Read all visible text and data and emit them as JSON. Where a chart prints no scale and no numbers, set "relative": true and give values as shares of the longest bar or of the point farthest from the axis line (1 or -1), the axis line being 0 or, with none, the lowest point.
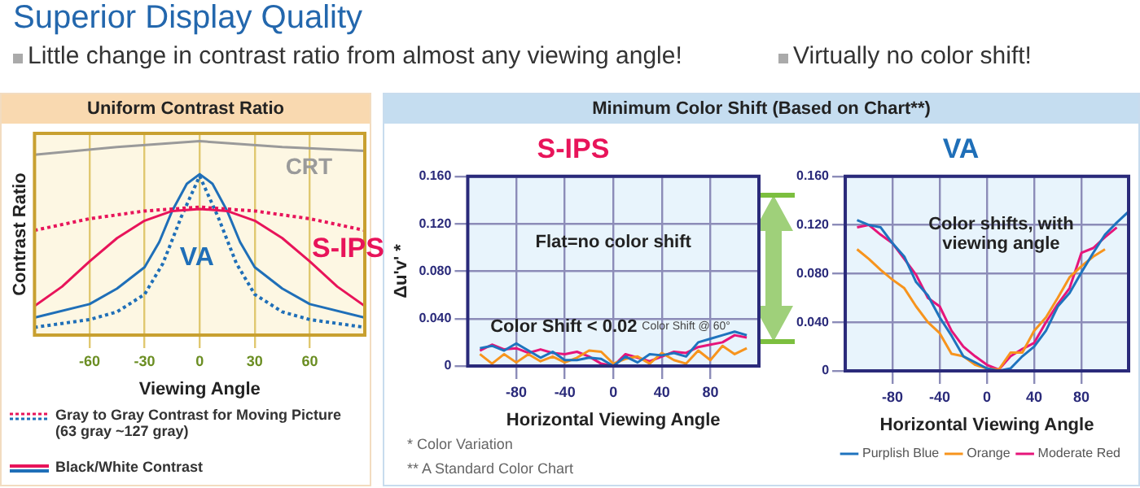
{
  "chart_data": [
    {
      "type": "line",
      "title": "Uniform Contrast Ratio",
      "xlabel": "Viewing Angle",
      "ylabel": "Contrast Ratio",
      "relative": true,
      "xlim": [
        -90,
        90
      ],
      "xticks": [
        -60,
        -30,
        0,
        30,
        60
      ],
      "grid": "x",
      "legend": false,
      "tick_labels": "x",
      "annotations": [
        "Superior Display Quality",
        "Little change in contrast ratio from almost any viewing angle!",
        "Gray to Gray Contrast for Moving Picture (63 gray ~127 gray)",
        "Black/White Contrast"
      ],
      "series": [
        {
          "name": "CRT",
          "color": "#9a9a9a",
          "x": [
            -90,
            -45,
            0,
            45,
            90
          ],
          "values": [
            0.93,
            0.97,
            1,
            0.97,
            0.95
          ]
        },
        {
          "name": "S-IPS",
          "color": "#e8145a",
          "x": [
            -90,
            -75,
            -60,
            -45,
            -30,
            -15,
            0,
            15,
            30,
            45,
            60,
            75,
            90
          ],
          "values": [
            0.15,
            0.25,
            0.38,
            0.5,
            0.59,
            0.64,
            0.65,
            0.64,
            0.59,
            0.5,
            0.38,
            0.25,
            0.15
          ]
        },
        {
          "color": "#e8145a",
          "line_style": "dotted",
          "x": [
            -90,
            -60,
            -30,
            0,
            30,
            60,
            90
          ],
          "values": [
            0.54,
            0.6,
            0.64,
            0.66,
            0.64,
            0.6,
            0.54
          ]
        },
        {
          "name": "VA",
          "color": "#1f6fb8",
          "x": [
            -90,
            -60,
            -45,
            -30,
            -22,
            -15,
            -7,
            0,
            7,
            15,
            22,
            30,
            45,
            60,
            90
          ],
          "values": [
            0.09,
            0.16,
            0.24,
            0.35,
            0.48,
            0.64,
            0.78,
            0.83,
            0.78,
            0.64,
            0.48,
            0.35,
            0.24,
            0.16,
            0.09
          ]
        },
        {
          "color": "#1f6fb8",
          "line_style": "dotted",
          "x": [
            -90,
            -60,
            -45,
            -30,
            -20,
            -10,
            0,
            10,
            20,
            30,
            45,
            60,
            90
          ],
          "values": [
            0.04,
            0.08,
            0.12,
            0.21,
            0.37,
            0.61,
            0.82,
            0.61,
            0.37,
            0.21,
            0.12,
            0.08,
            0.04
          ]
        }
      ]
    },
    {
      "type": "line",
      "title": "S-IPS",
      "xlabel": "Horizontal Viewing Angle",
      "ylabel": "Δu'v' *",
      "xlim": [
        -120,
        120
      ],
      "xticks": [
        -80,
        -40,
        0,
        40,
        80
      ],
      "ylim": [
        0,
        0.16
      ],
      "yticks": [
        0,
        {
          "value": 0.04,
          "label": "0.040"
        },
        {
          "value": 0.08,
          "label": "0.080"
        },
        {
          "value": 0.12,
          "label": "0.120"
        },
        {
          "value": 0.16,
          "label": "0.160"
        }
      ],
      "grid": true,
      "legend": false,
      "annotations": [
        "Virtually no color shift!",
        "Minimum Color Shift (Based on Chart**)",
        "Flat=no color shift",
        "Color Shift < 0.02",
        {
          "text": "Color Shift @ 60°",
          "x": 60,
          "y": 0.015
        },
        "* Color Variation",
        "** A Standard Color Chart"
      ],
      "x": [
        -110,
        -100,
        -90,
        -80,
        -70,
        -60,
        -50,
        -40,
        -30,
        -20,
        -10,
        0,
        10,
        20,
        30,
        40,
        50,
        60,
        70,
        80,
        90,
        100,
        110
      ],
      "series": [
        {
          "color": "#1e73be",
          "values": [
            0.015,
            0.017,
            0.013,
            0.019,
            0.013,
            0.007,
            0.012,
            0.005,
            0.005,
            0.007,
            0.006,
            0,
            0.008,
            0.003,
            0.01,
            0.009,
            0.011,
            0.008,
            0.02,
            0.023,
            0.026,
            0.029,
            0.026
          ]
        },
        {
          "color": "#f7941d",
          "values": [
            0.01,
            0.002,
            0.01,
            0.003,
            0.01,
            0.004,
            0.008,
            0.003,
            0.007,
            0.013,
            0.012,
            0.002,
            0.006,
            0.008,
            0.002,
            0.011,
            0.005,
            0.002,
            0.013,
            0.005,
            0.017,
            0.01,
            0.015
          ]
        },
        {
          "color": "#e6157a",
          "values": [
            0.013,
            0.018,
            0.014,
            0.015,
            0.011,
            0.014,
            0.011,
            0.01,
            0.012,
            0.008,
            0.002,
            0,
            0.01,
            0.007,
            0.004,
            0.008,
            0.012,
            0.011,
            0.016,
            0.018,
            0.02,
            0.026,
            0.024
          ]
        }
      ]
    },
    {
      "type": "line",
      "title": "VA",
      "xlabel": "Horizontal Viewing Angle",
      "xlim": [
        -120,
        120
      ],
      "xticks": [
        -80,
        -40,
        0,
        40,
        80
      ],
      "ylim": [
        0,
        0.16
      ],
      "yticks": [
        0,
        {
          "value": 0.04,
          "label": "0.040"
        },
        {
          "value": 0.08,
          "label": "0.080"
        },
        {
          "value": 0.12,
          "label": "0.120"
        },
        {
          "value": 0.16,
          "label": "0.160"
        }
      ],
      "grid": true,
      "legend": "bottom right",
      "annotations": [
        "Color shifts, with viewing angle"
      ],
      "series": [
        {
          "name": "Purplish Blue",
          "color": "#1e73be",
          "x": [
            -110,
            -100,
            -90,
            -80,
            -70,
            -60,
            -50,
            -40,
            -30,
            -20,
            -10,
            0,
            10,
            20,
            30,
            40,
            50,
            60,
            70,
            80,
            90,
            100,
            110,
            120
          ],
          "values": [
            0.124,
            0.12,
            0.118,
            0.105,
            0.094,
            0.073,
            0.062,
            0.044,
            0.029,
            0.012,
            0.007,
            0.002,
            0,
            0.002,
            0.012,
            0.02,
            0.033,
            0.053,
            0.064,
            0.081,
            0.097,
            0.112,
            0.122,
            0.131
          ]
        },
        {
          "name": "Orange",
          "color": "#f7941d",
          "x": [
            -110,
            -100,
            -90,
            -80,
            -70,
            -60,
            -50,
            -40,
            -30,
            -20,
            -10,
            0,
            10,
            20,
            30,
            40,
            50,
            60,
            70,
            80,
            90,
            100
          ],
          "values": [
            0.1,
            0.092,
            0.083,
            0.075,
            0.068,
            0.053,
            0.04,
            0.031,
            0.014,
            0.012,
            0.005,
            0.002,
            0.001,
            0.015,
            0.015,
            0.033,
            0.044,
            0.06,
            0.077,
            0.086,
            0.094,
            0.1
          ]
        },
        {
          "name": "Moderate Red",
          "color": "#e6157a",
          "x": [
            -110,
            -100,
            -90,
            -80,
            -70,
            -60,
            -50,
            -40,
            -30,
            -20,
            -10,
            0,
            10,
            20,
            30,
            40,
            50,
            60,
            70,
            80,
            90,
            100,
            110
          ],
          "values": [
            0.118,
            0.12,
            0.112,
            0.105,
            0.092,
            0.079,
            0.06,
            0.053,
            0.033,
            0.02,
            0.012,
            0.005,
            0.001,
            0.012,
            0.018,
            0.023,
            0.04,
            0.055,
            0.068,
            0.097,
            0.101,
            0.11,
            0.118
          ]
        }
      ]
    }
  ]
}
